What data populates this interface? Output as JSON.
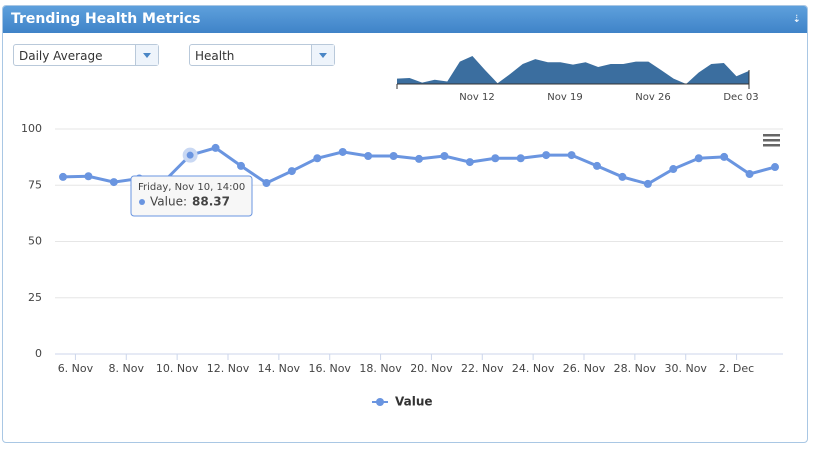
{
  "header": {
    "title": "Trending Health Metrics"
  },
  "controls": {
    "aggregation": "Daily Average",
    "category": "Health"
  },
  "navigator": {
    "labels": [
      "Nov 12",
      "Nov 19",
      "Nov 26",
      "Dec 03"
    ]
  },
  "tooltip": {
    "header": "Friday, Nov 10, 14:00",
    "label": "Value:"
  },
  "chart_data": {
    "type": "line",
    "categories": [
      null,
      "6. Nov",
      null,
      "8. Nov",
      null,
      "10. Nov",
      null,
      "12. Nov",
      null,
      "14. Nov",
      null,
      "16. Nov",
      null,
      "18. Nov",
      null,
      "20. Nov",
      null,
      "22. Nov",
      null,
      "24. Nov",
      null,
      "26. Nov",
      null,
      "28. Nov",
      null,
      "30. Nov",
      null,
      "2. Dec",
      null
    ],
    "series": [
      {
        "name": "Value",
        "color": "#6a95e0",
        "values": [
          78.7,
          79,
          76.4,
          78,
          77,
          88.37,
          91.6,
          83.6,
          76,
          81.3,
          87,
          89.8,
          88,
          88,
          86.7,
          88,
          85.3,
          87,
          87,
          88.4,
          88.4,
          83.6,
          78.7,
          75.6,
          82.2,
          87,
          87.6,
          80,
          83.1
        ]
      }
    ],
    "ylim": [
      0,
      100
    ],
    "yticks": [
      0,
      25,
      50,
      75,
      100
    ],
    "grid": true,
    "legend": "bottom"
  }
}
